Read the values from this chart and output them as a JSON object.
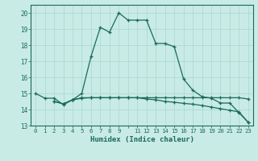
{
  "xlabel": "Humidex (Indice chaleur)",
  "bg_color": "#c8ebe5",
  "grid_color": "#a8d8d0",
  "line_color": "#1a6b5a",
  "x_ticks": [
    0,
    1,
    2,
    3,
    4,
    5,
    6,
    7,
    8,
    9,
    10,
    11,
    12,
    13,
    14,
    15,
    16,
    17,
    18,
    19,
    20,
    21,
    22,
    23
  ],
  "x_tick_labels": [
    "0",
    "1",
    "2",
    "3",
    "4",
    "5",
    "6",
    "7",
    "8",
    "9",
    "",
    "11",
    "12",
    "13",
    "14",
    "15",
    "16",
    "17",
    "18",
    "19",
    "20",
    "21",
    "22",
    "23"
  ],
  "ylim": [
    13.0,
    20.5
  ],
  "yticks": [
    13,
    14,
    15,
    16,
    17,
    18,
    19,
    20
  ],
  "line1_x": [
    0,
    1,
    2,
    3,
    4,
    5,
    6,
    7,
    8,
    9,
    10,
    11,
    12,
    13,
    14,
    15,
    16,
    17,
    18,
    19,
    20,
    21,
    22,
    23
  ],
  "line1_y": [
    15.0,
    14.7,
    14.7,
    14.3,
    14.6,
    15.0,
    17.3,
    19.1,
    18.8,
    20.0,
    19.55,
    19.55,
    19.55,
    18.1,
    18.1,
    17.9,
    15.9,
    15.2,
    14.8,
    14.7,
    14.4,
    14.4,
    13.8,
    13.2
  ],
  "line2_x": [
    2,
    3,
    4,
    5,
    6,
    7,
    8,
    9,
    10,
    11,
    12,
    13,
    14,
    15,
    16,
    17,
    18,
    19,
    20,
    21,
    22,
    23
  ],
  "line2_y": [
    14.5,
    14.35,
    14.6,
    14.7,
    14.73,
    14.73,
    14.73,
    14.73,
    14.73,
    14.73,
    14.65,
    14.6,
    14.5,
    14.45,
    14.38,
    14.33,
    14.25,
    14.15,
    14.05,
    13.95,
    13.85,
    13.2
  ],
  "line3_x": [
    2,
    3,
    4,
    5,
    6,
    7,
    8,
    9,
    10,
    11,
    12,
    13,
    14,
    15,
    16,
    17,
    18,
    19,
    20,
    21,
    22,
    23
  ],
  "line3_y": [
    14.5,
    14.35,
    14.6,
    14.73,
    14.73,
    14.73,
    14.73,
    14.73,
    14.73,
    14.73,
    14.73,
    14.73,
    14.73,
    14.73,
    14.73,
    14.73,
    14.73,
    14.73,
    14.73,
    14.73,
    14.73,
    14.65
  ]
}
